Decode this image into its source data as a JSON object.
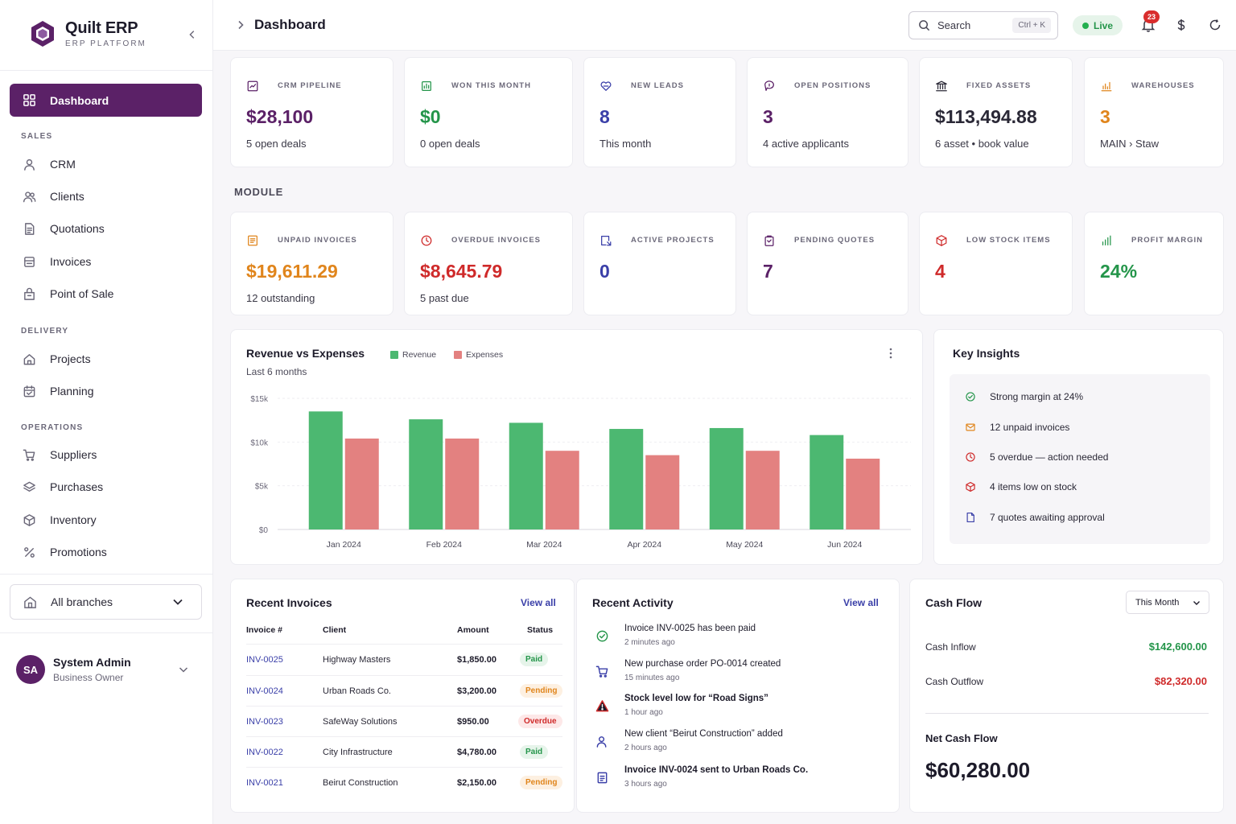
{
  "brand": {
    "name": "Quilt ERP",
    "subtitle": "ERP PLATFORM"
  },
  "sidebar": {
    "active": {
      "label": "Dashboard",
      "icon": "grid-icon"
    },
    "sections": [
      {
        "label": "SALES",
        "items": [
          {
            "label": "CRM",
            "icon": "user-icon"
          },
          {
            "label": "Clients",
            "icon": "users-icon"
          },
          {
            "label": "Quotations",
            "icon": "file-text-icon"
          },
          {
            "label": "Invoices",
            "icon": "receipt-icon"
          },
          {
            "label": "Point of Sale",
            "icon": "store-icon"
          }
        ]
      },
      {
        "label": "DELIVERY",
        "items": [
          {
            "label": "Projects",
            "icon": "home-icon"
          },
          {
            "label": "Planning",
            "icon": "calendar-icon"
          }
        ]
      },
      {
        "label": "OPERATIONS",
        "items": [
          {
            "label": "Suppliers",
            "icon": "cart-icon"
          },
          {
            "label": "Purchases",
            "icon": "layers-icon"
          },
          {
            "label": "Inventory",
            "icon": "box-icon"
          },
          {
            "label": "Promotions",
            "icon": "percent-icon"
          }
        ]
      }
    ],
    "branch": "All branches",
    "user": {
      "initials": "SA",
      "name": "System Admin",
      "role": "Business Owner"
    }
  },
  "header": {
    "title": "Dashboard",
    "search_placeholder": "Search",
    "search_shortcut": "Ctrl + K",
    "live_label": "Live",
    "notification_count": "23"
  },
  "kpis_top": [
    {
      "label": "CRM PIPELINE",
      "value": "$28,100",
      "sub": "5 open deals",
      "color": "#5b2167",
      "icon": "chart-square-icon"
    },
    {
      "label": "WON THIS MONTH",
      "value": "$0",
      "sub": "0 open deals",
      "color": "#24954a",
      "icon": "trophy-icon"
    },
    {
      "label": "NEW LEADS",
      "value": "8",
      "sub": "This month",
      "color": "#3a3fa8",
      "icon": "heart-handshake-icon"
    },
    {
      "label": "OPEN POSITIONS",
      "value": "3",
      "sub": "4 active applicants",
      "color": "#5b2167",
      "icon": "megaphone-icon"
    },
    {
      "label": "FIXED ASSETS",
      "value": "$113,494.88",
      "sub": "6 asset • book value",
      "color": "#2a2836",
      "icon": "bank-icon"
    },
    {
      "label": "WAREHOUSES",
      "value": "3",
      "sub": "MAIN › Staw",
      "color": "#e0851c",
      "icon": "bar-chart-icon"
    }
  ],
  "module_label": "MODULE",
  "kpis_module": [
    {
      "label": "UNPAID INVOICES",
      "value": "$19,611.29",
      "sub": "12 outstanding",
      "color": "#e0851c",
      "icon": "invoice-icon"
    },
    {
      "label": "OVERDUE INVOICES",
      "value": "$8,645.79",
      "sub": "5 past due",
      "color": "#cf2a2a",
      "icon": "clock-icon"
    },
    {
      "label": "ACTIVE PROJECTS",
      "value": "0",
      "sub": "",
      "color": "#3a3fa8",
      "icon": "project-icon"
    },
    {
      "label": "PENDING QUOTES",
      "value": "7",
      "sub": "",
      "color": "#5b2167",
      "icon": "clipboard-icon"
    },
    {
      "label": "LOW STOCK ITEMS",
      "value": "4",
      "sub": "",
      "color": "#cf2a2a",
      "icon": "cube-icon"
    },
    {
      "label": "PROFIT MARGIN",
      "value": "24%",
      "sub": "",
      "color": "#24954a",
      "icon": "bars-icon"
    }
  ],
  "chart_data": {
    "type": "bar",
    "title": "Revenue vs Expenses",
    "subtitle": "Last 6 months",
    "categories": [
      "Jan 2024",
      "Feb 2024",
      "Mar 2024",
      "Apr 2024",
      "May 2024",
      "Jun 2024"
    ],
    "series": [
      {
        "name": "Revenue",
        "color": "#4cb871",
        "values": [
          13500,
          12600,
          12200,
          11500,
          11600,
          10800
        ]
      },
      {
        "name": "Expenses",
        "color": "#e38180",
        "values": [
          10400,
          10400,
          9000,
          8500,
          9000,
          8100
        ]
      }
    ],
    "yticks": [
      "$0",
      "$5k",
      "$10k",
      "$15k"
    ],
    "ylim": [
      0,
      15000
    ],
    "legend": "top"
  },
  "insights": {
    "title": "Key Insights",
    "items": [
      {
        "text": "Strong margin at 24%",
        "icon": "check-circle-icon",
        "color": "#24954a"
      },
      {
        "text": "12 unpaid invoices",
        "icon": "mail-icon",
        "color": "#e0851c"
      },
      {
        "text": "5 overdue — action needed",
        "icon": "clock-icon",
        "color": "#cf2a2a"
      },
      {
        "text": "4 items low on stock",
        "icon": "cube-icon",
        "color": "#cf2a2a"
      },
      {
        "text": "7 quotes awaiting approval",
        "icon": "document-icon",
        "color": "#3a3fa8"
      }
    ]
  },
  "invoices": {
    "title": "Recent Invoices",
    "view_all": "View all",
    "columns": [
      "Invoice #",
      "Client",
      "Amount",
      "Status"
    ],
    "rows": [
      {
        "id": "INV-0025",
        "client": "Highway Masters",
        "amount": "$1,850.00",
        "status": "Paid",
        "kind": "paid"
      },
      {
        "id": "INV-0024",
        "client": "Urban Roads Co.",
        "amount": "$3,200.00",
        "status": "Pending",
        "kind": "pending"
      },
      {
        "id": "INV-0023",
        "client": "SafeWay Solutions",
        "amount": "$950.00",
        "status": "Overdue",
        "kind": "overdue"
      },
      {
        "id": "INV-0022",
        "client": "City Infrastructure",
        "amount": "$4,780.00",
        "status": "Paid",
        "kind": "paid"
      },
      {
        "id": "INV-0021",
        "client": "Beirut Construction",
        "amount": "$2,150.00",
        "status": "Pending",
        "kind": "pending"
      }
    ]
  },
  "activity": {
    "title": "Recent Activity",
    "view_all": "View all",
    "items": [
      {
        "title": "Invoice INV-0025 has been paid",
        "time": "2 minutes ago",
        "icon": "check-circle-icon",
        "color": "#24954a",
        "bold": false
      },
      {
        "title": "New purchase order PO-0014 created",
        "time": "15 minutes ago",
        "icon": "cart-icon",
        "color": "#3a3fa8",
        "bold": false
      },
      {
        "title": "Stock level low for “Road Signs”",
        "time": "1 hour ago",
        "icon": "alert-triangle-icon",
        "color": "#cf2a2a",
        "bold": true
      },
      {
        "title": "New client “Beirut Construction” added",
        "time": "2 hours ago",
        "icon": "user-plus-icon",
        "color": "#3a3fa8",
        "bold": false
      },
      {
        "title": "Invoice INV-0024 sent to Urban Roads Co.",
        "time": "3 hours ago",
        "icon": "file-invoice-icon",
        "color": "#3a3fa8",
        "bold": true
      }
    ]
  },
  "cashflow": {
    "title": "Cash Flow",
    "period": "This Month",
    "inflow_label": "Cash Inflow",
    "inflow_value": "$142,600.00",
    "outflow_label": "Cash Outflow",
    "outflow_value": "$82,320.00",
    "net_label": "Net Cash Flow",
    "net_value": "$60,280.00"
  }
}
